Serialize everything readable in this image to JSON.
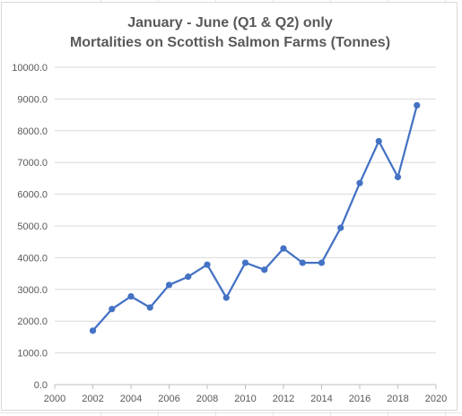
{
  "chart_data": {
    "type": "line",
    "title_lines": [
      "January - June (Q1 & Q2) only",
      "Mortalities on Scottish Salmon Farms (Tonnes)"
    ],
    "xlabel": "",
    "ylabel": "",
    "x": [
      2002,
      2003,
      2004,
      2005,
      2006,
      2007,
      2008,
      2009,
      2010,
      2011,
      2012,
      2013,
      2014,
      2015,
      2016,
      2017,
      2018,
      2019
    ],
    "series": [
      {
        "name": "",
        "values": [
          1700,
          2380,
          2780,
          2430,
          3140,
          3400,
          3780,
          2740,
          3840,
          3620,
          4290,
          3840,
          3840,
          4940,
          6350,
          7670,
          6540,
          8800
        ],
        "color": "#4472c4"
      }
    ],
    "xlim": [
      2000,
      2020
    ],
    "ylim": [
      0,
      10000
    ],
    "x_ticks": [
      "2000",
      "2002",
      "2004",
      "2006",
      "2008",
      "2010",
      "2012",
      "2014",
      "2016",
      "2018",
      "2020"
    ],
    "y_ticks": [
      "0.0",
      "1000.0",
      "2000.0",
      "3000.0",
      "4000.0",
      "5000.0",
      "6000.0",
      "7000.0",
      "8000.0",
      "9000.0",
      "10000.0"
    ],
    "grid": "horizontal",
    "legend": "none",
    "colors": {
      "gridline": "#d9d9d9",
      "text": "#595959",
      "line": "#4472c4"
    }
  }
}
